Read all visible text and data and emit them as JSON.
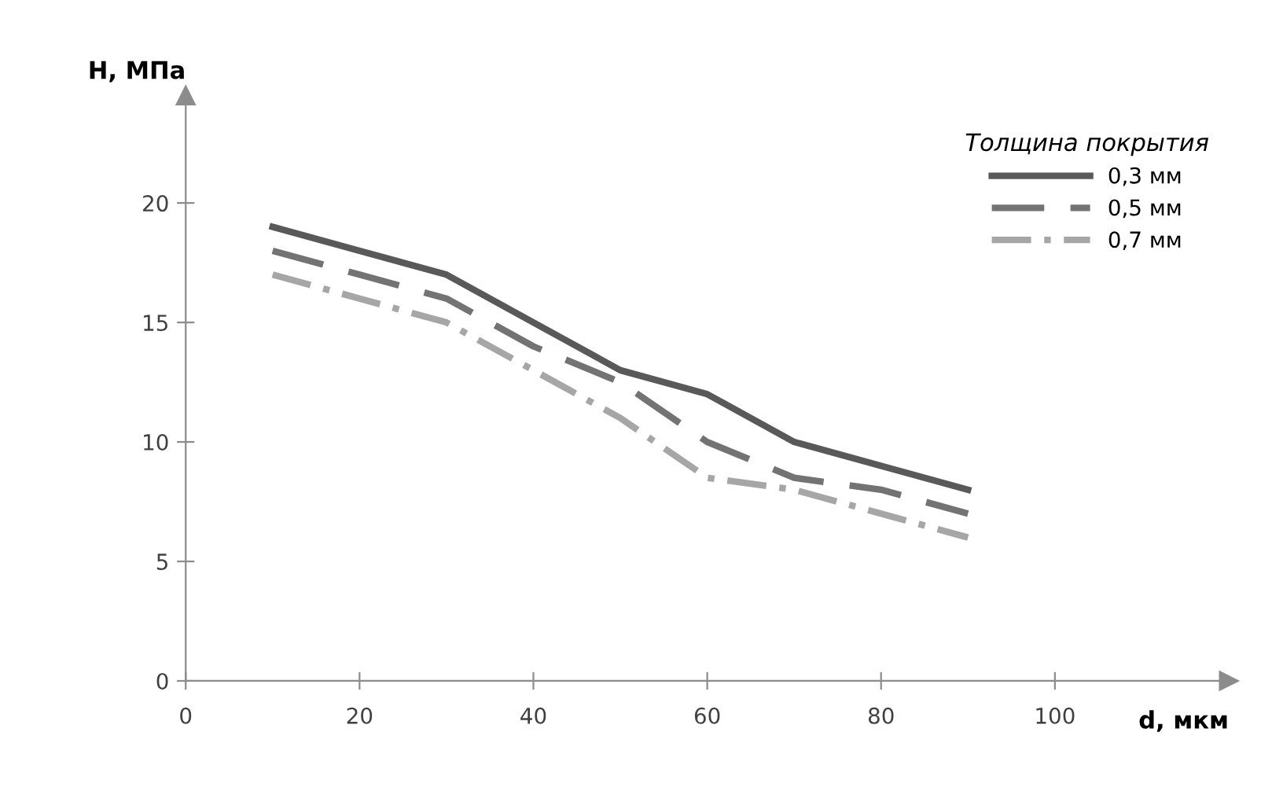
{
  "chart_data": {
    "type": "line",
    "xlabel": "d, мкм",
    "ylabel": "H, МПа",
    "legend_title": "Толщина покрытия",
    "x": [
      10,
      20,
      30,
      40,
      50,
      60,
      70,
      80,
      90
    ],
    "series": [
      {
        "name": "0,3 мм",
        "color": "#595959",
        "line_style": "solid",
        "values": [
          19,
          18,
          17,
          15,
          13,
          12,
          10,
          9,
          8
        ]
      },
      {
        "name": "0,5 мм",
        "color": "#737373",
        "line_style": "dashed",
        "values": [
          18,
          17,
          16,
          14,
          12.5,
          10,
          8.5,
          8,
          7
        ]
      },
      {
        "name": "0,7 мм",
        "color": "#a6a6a6",
        "line_style": "dashdot",
        "values": [
          17,
          16,
          15,
          13,
          11,
          8.5,
          8,
          7,
          6
        ]
      }
    ],
    "xlim": [
      0,
      120
    ],
    "ylim": [
      0,
      24.5
    ],
    "xticks": [
      0,
      20,
      40,
      60,
      80,
      100
    ],
    "yticks": [
      0,
      5,
      10,
      15,
      20
    ],
    "grid": false,
    "legend": "top right",
    "marker": "none"
  }
}
